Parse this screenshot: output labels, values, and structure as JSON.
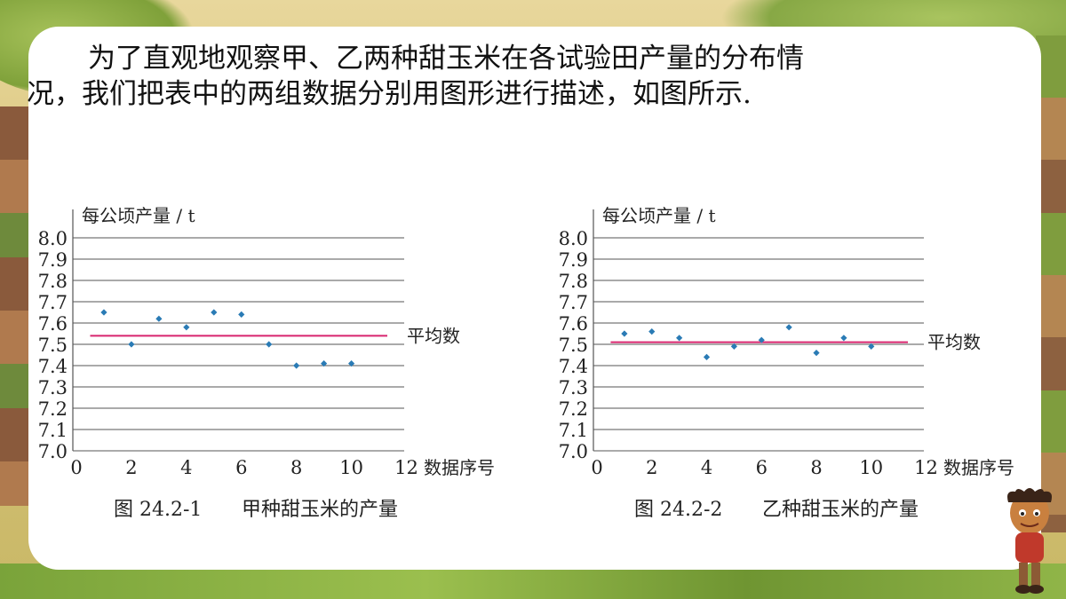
{
  "paragraph": {
    "line1": "为了直观地观察甲、乙两种甜玉米在各试验田产量的分布情",
    "line2": "况，我们把表中的两组数据分别用图形进行描述，如图所示."
  },
  "colors": {
    "point": "#2a7bb5",
    "mean_line": "#d8246e",
    "grid": "#555555",
    "text": "#222222"
  },
  "chart_data": [
    {
      "type": "scatter",
      "title": "",
      "ylabel": "每公顷产量 / t",
      "xlabel": "数据序号",
      "caption_no": "图 24.2-1",
      "caption_title": "甲种甜玉米的产量",
      "xlim": [
        0,
        12
      ],
      "ylim": [
        7.0,
        8.0
      ],
      "xticks": [
        "0",
        "2",
        "4",
        "6",
        "8",
        "10",
        "12"
      ],
      "yticks": [
        "7.0",
        "7.1",
        "7.2",
        "7.3",
        "7.4",
        "7.5",
        "7.6",
        "7.7",
        "7.8",
        "7.9",
        "8.0"
      ],
      "x": [
        1,
        2,
        3,
        4,
        5,
        6,
        7,
        8,
        9,
        10
      ],
      "y": [
        7.65,
        7.5,
        7.62,
        7.58,
        7.65,
        7.64,
        7.5,
        7.4,
        7.41,
        7.41
      ],
      "mean": 7.54,
      "mean_label": "平均数",
      "grid": true
    },
    {
      "type": "scatter",
      "title": "",
      "ylabel": "每公顷产量 / t",
      "xlabel": "数据序号",
      "caption_no": "图 24.2-2",
      "caption_title": "乙种甜玉米的产量",
      "xlim": [
        0,
        12
      ],
      "ylim": [
        7.0,
        8.0
      ],
      "xticks": [
        "0",
        "2",
        "4",
        "6",
        "8",
        "10",
        "12"
      ],
      "yticks": [
        "7.0",
        "7.1",
        "7.2",
        "7.3",
        "7.4",
        "7.5",
        "7.6",
        "7.7",
        "7.8",
        "7.9",
        "8.0"
      ],
      "x": [
        1,
        2,
        3,
        4,
        5,
        6,
        7,
        8,
        9,
        10
      ],
      "y": [
        7.55,
        7.56,
        7.53,
        7.44,
        7.49,
        7.52,
        7.58,
        7.46,
        7.53,
        7.49
      ],
      "mean": 7.51,
      "mean_label": "平均数",
      "grid": true
    }
  ]
}
